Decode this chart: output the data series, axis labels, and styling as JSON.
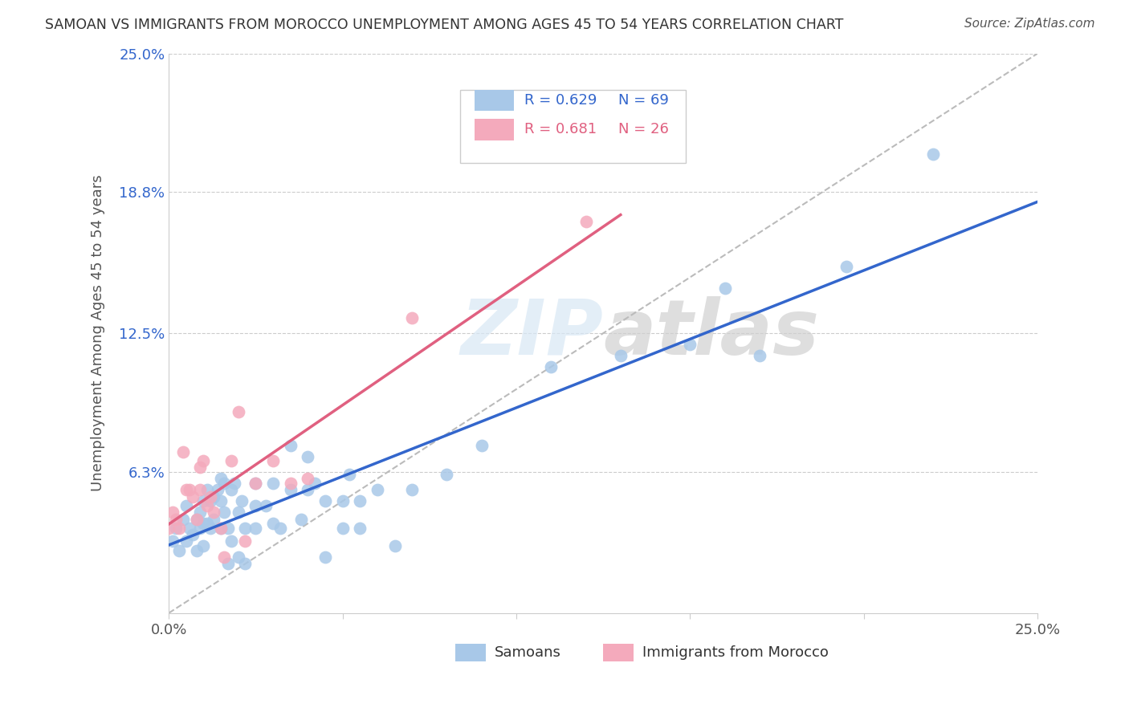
{
  "title": "SAMOAN VS IMMIGRANTS FROM MOROCCO UNEMPLOYMENT AMONG AGES 45 TO 54 YEARS CORRELATION CHART",
  "source": "Source: ZipAtlas.com",
  "ylabel": "Unemployment Among Ages 45 to 54 years",
  "xlim": [
    0.0,
    0.25
  ],
  "ylim": [
    0.0,
    0.25
  ],
  "background_color": "#ffffff",
  "watermark": "ZIPatlas",
  "legend_blue_R": "0.629",
  "legend_blue_N": "69",
  "legend_pink_R": "0.681",
  "legend_pink_N": "26",
  "blue_color": "#A8C8E8",
  "pink_color": "#F4AABC",
  "blue_line_color": "#3366CC",
  "pink_line_color": "#E06080",
  "dashed_line_color": "#BBBBBB",
  "grid_color": "#CCCCCC",
  "samoans_x": [
    0.001,
    0.002,
    0.003,
    0.004,
    0.005,
    0.005,
    0.006,
    0.007,
    0.008,
    0.008,
    0.009,
    0.009,
    0.01,
    0.01,
    0.01,
    0.011,
    0.011,
    0.012,
    0.012,
    0.013,
    0.013,
    0.014,
    0.015,
    0.015,
    0.015,
    0.016,
    0.016,
    0.017,
    0.017,
    0.018,
    0.018,
    0.019,
    0.02,
    0.02,
    0.021,
    0.022,
    0.022,
    0.025,
    0.025,
    0.025,
    0.028,
    0.03,
    0.03,
    0.032,
    0.035,
    0.035,
    0.038,
    0.04,
    0.04,
    0.042,
    0.045,
    0.045,
    0.05,
    0.05,
    0.052,
    0.055,
    0.055,
    0.06,
    0.065,
    0.07,
    0.08,
    0.09,
    0.11,
    0.13,
    0.15,
    0.16,
    0.17,
    0.195,
    0.22
  ],
  "samoans_y": [
    0.032,
    0.038,
    0.028,
    0.042,
    0.048,
    0.032,
    0.038,
    0.035,
    0.042,
    0.028,
    0.045,
    0.038,
    0.05,
    0.04,
    0.03,
    0.055,
    0.04,
    0.05,
    0.038,
    0.052,
    0.042,
    0.055,
    0.06,
    0.05,
    0.038,
    0.058,
    0.045,
    0.038,
    0.022,
    0.055,
    0.032,
    0.058,
    0.045,
    0.025,
    0.05,
    0.038,
    0.022,
    0.058,
    0.048,
    0.038,
    0.048,
    0.058,
    0.04,
    0.038,
    0.075,
    0.055,
    0.042,
    0.07,
    0.055,
    0.058,
    0.05,
    0.025,
    0.05,
    0.038,
    0.062,
    0.05,
    0.038,
    0.055,
    0.03,
    0.055,
    0.062,
    0.075,
    0.11,
    0.115,
    0.12,
    0.145,
    0.115,
    0.155,
    0.205
  ],
  "morocco_x": [
    0.0,
    0.001,
    0.002,
    0.003,
    0.004,
    0.005,
    0.006,
    0.007,
    0.008,
    0.009,
    0.009,
    0.01,
    0.011,
    0.012,
    0.013,
    0.015,
    0.016,
    0.018,
    0.02,
    0.022,
    0.025,
    0.03,
    0.035,
    0.04,
    0.07,
    0.12
  ],
  "morocco_y": [
    0.038,
    0.045,
    0.042,
    0.038,
    0.072,
    0.055,
    0.055,
    0.052,
    0.042,
    0.065,
    0.055,
    0.068,
    0.048,
    0.052,
    0.045,
    0.038,
    0.025,
    0.068,
    0.09,
    0.032,
    0.058,
    0.068,
    0.058,
    0.06,
    0.132,
    0.175
  ]
}
